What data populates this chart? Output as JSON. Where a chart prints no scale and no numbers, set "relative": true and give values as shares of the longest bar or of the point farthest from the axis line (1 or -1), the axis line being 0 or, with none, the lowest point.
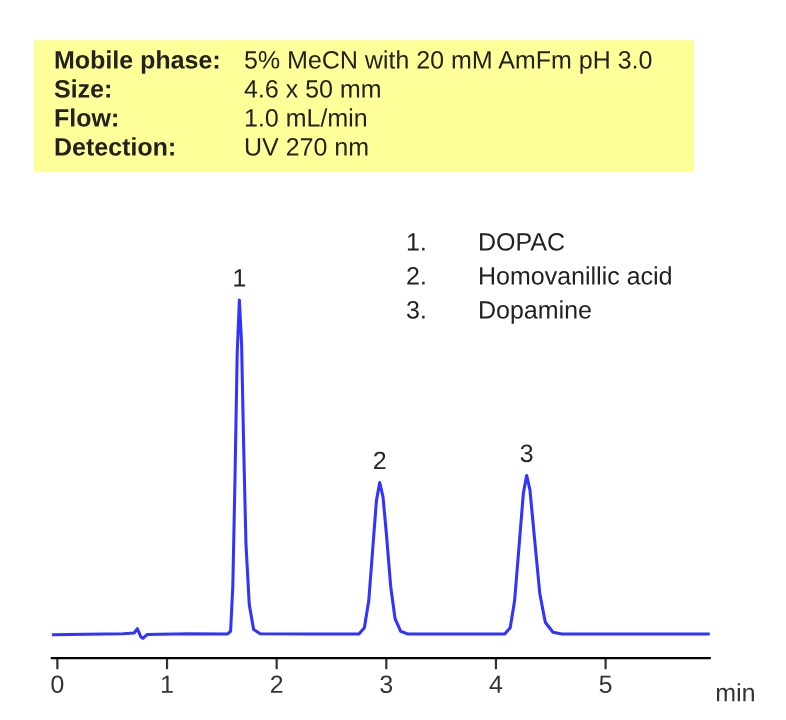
{
  "chart_data": {
    "type": "line",
    "relative": true,
    "xlabel": "min",
    "xlim": [
      -0.05,
      5.95
    ],
    "xticks": [
      0,
      1,
      2,
      3,
      4,
      5
    ],
    "tick_labels": "x",
    "grid": false,
    "legend": false,
    "marker": "none",
    "line_style": "solid",
    "x": [
      -0.05,
      0.6,
      0.7,
      0.73,
      0.76,
      0.78,
      0.82,
      1.2,
      1.55,
      1.58,
      1.6,
      1.62,
      1.64,
      1.66,
      1.68,
      1.7,
      1.72,
      1.75,
      1.79,
      1.85,
      2.3,
      2.75,
      2.8,
      2.84,
      2.88,
      2.91,
      2.94,
      2.97,
      3.0,
      3.04,
      3.08,
      3.13,
      3.2,
      3.7,
      4.08,
      4.13,
      4.17,
      4.21,
      4.25,
      4.28,
      4.31,
      4.35,
      4.4,
      4.45,
      4.52,
      4.6,
      5.3,
      5.95
    ],
    "series": [
      {
        "color": "#3333ff",
        "values": [
          0.065,
          0.068,
          0.07,
          0.082,
          0.06,
          0.055,
          0.066,
          0.068,
          0.067,
          0.075,
          0.2,
          0.5,
          0.85,
          1.0,
          0.88,
          0.58,
          0.32,
          0.15,
          0.08,
          0.068,
          0.067,
          0.067,
          0.085,
          0.16,
          0.32,
          0.44,
          0.49,
          0.45,
          0.35,
          0.2,
          0.11,
          0.075,
          0.067,
          0.067,
          0.067,
          0.085,
          0.16,
          0.31,
          0.46,
          0.51,
          0.47,
          0.34,
          0.18,
          0.1,
          0.072,
          0.067,
          0.067,
          0.067
        ]
      }
    ],
    "annotations": [
      "Mobile phase: 5% MeCN with 20 mM AmFm pH 3.0",
      "Size: 4.6 x 50 mm",
      "Flow: 1.0 mL/min",
      "Detection: UV 270 nm",
      "1. DOPAC",
      "2. Homovanillic acid",
      "3. Dopamine",
      {
        "text": "1",
        "x": 1.66,
        "y": 1.0
      },
      {
        "text": "2",
        "x": 2.94,
        "y": 0.49
      },
      {
        "text": "3",
        "x": 4.28,
        "y": 0.51
      }
    ]
  }
}
